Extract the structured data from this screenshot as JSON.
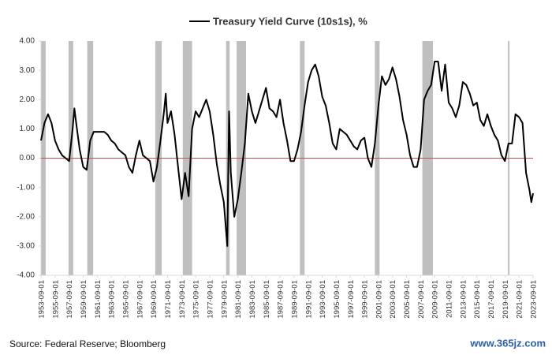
{
  "chart_data": {
    "type": "line",
    "series": [
      {
        "name": "Treasury Yield Curve (10s1s), %",
        "color": "#000000",
        "x": [
          "1953-09-01",
          "1954-03-01",
          "1954-09-01",
          "1955-03-01",
          "1955-09-01",
          "1956-03-01",
          "1956-09-01",
          "1957-03-01",
          "1957-09-01",
          "1958-03-01",
          "1958-06-01",
          "1958-09-01",
          "1959-03-01",
          "1959-09-01",
          "1960-03-01",
          "1960-09-01",
          "1961-03-01",
          "1961-09-01",
          "1962-03-01",
          "1962-09-01",
          "1963-03-01",
          "1963-09-01",
          "1964-03-01",
          "1964-09-01",
          "1965-03-01",
          "1965-09-01",
          "1966-03-01",
          "1966-09-01",
          "1967-03-01",
          "1967-09-01",
          "1968-03-01",
          "1968-09-01",
          "1969-03-01",
          "1969-09-01",
          "1970-03-01",
          "1970-09-01",
          "1971-03-01",
          "1971-06-01",
          "1971-09-01",
          "1972-03-01",
          "1972-09-01",
          "1973-03-01",
          "1973-09-01",
          "1974-03-01",
          "1974-09-01",
          "1975-03-01",
          "1975-09-01",
          "1976-03-01",
          "1976-09-01",
          "1977-03-01",
          "1977-09-01",
          "1978-03-01",
          "1978-09-01",
          "1979-03-01",
          "1979-09-01",
          "1980-03-01",
          "1980-06-01",
          "1980-09-01",
          "1981-03-01",
          "1981-09-01",
          "1982-03-01",
          "1982-09-01",
          "1983-03-01",
          "1983-09-01",
          "1984-03-01",
          "1984-09-01",
          "1985-03-01",
          "1985-09-01",
          "1986-03-01",
          "1986-09-01",
          "1987-03-01",
          "1987-09-01",
          "1988-03-01",
          "1988-09-01",
          "1989-03-01",
          "1989-09-01",
          "1990-03-01",
          "1990-09-01",
          "1991-03-01",
          "1991-09-01",
          "1992-03-01",
          "1992-09-01",
          "1993-03-01",
          "1993-09-01",
          "1994-03-01",
          "1994-09-01",
          "1995-03-01",
          "1995-09-01",
          "1996-03-01",
          "1996-09-01",
          "1997-03-01",
          "1997-09-01",
          "1998-03-01",
          "1998-09-01",
          "1999-03-01",
          "1999-09-01",
          "2000-03-01",
          "2000-09-01",
          "2001-03-01",
          "2001-09-01",
          "2002-03-01",
          "2002-09-01",
          "2003-03-01",
          "2003-09-01",
          "2004-03-01",
          "2004-09-01",
          "2005-03-01",
          "2005-09-01",
          "2006-03-01",
          "2006-09-01",
          "2007-03-01",
          "2007-09-01",
          "2008-03-01",
          "2008-09-01",
          "2009-03-01",
          "2009-09-01",
          "2010-03-01",
          "2010-09-01",
          "2011-03-01",
          "2011-09-01",
          "2012-03-01",
          "2012-09-01",
          "2013-03-01",
          "2013-09-01",
          "2014-03-01",
          "2014-09-01",
          "2015-03-01",
          "2015-09-01",
          "2016-03-01",
          "2016-09-01",
          "2017-03-01",
          "2017-09-01",
          "2018-03-01",
          "2018-09-01",
          "2019-03-01",
          "2019-09-01",
          "2020-03-01",
          "2020-09-01",
          "2021-03-01",
          "2021-09-01",
          "2022-03-01",
          "2022-09-01",
          "2023-03-01",
          "2023-06-01",
          "2023-09-01"
        ],
        "values": [
          0.6,
          1.2,
          1.5,
          1.2,
          0.6,
          0.3,
          0.1,
          0.0,
          -0.1,
          1.0,
          1.7,
          1.2,
          0.3,
          -0.3,
          -0.4,
          0.6,
          0.9,
          0.9,
          0.9,
          0.9,
          0.8,
          0.6,
          0.5,
          0.3,
          0.2,
          0.1,
          -0.3,
          -0.5,
          0.1,
          0.6,
          0.1,
          0.0,
          -0.1,
          -0.8,
          -0.3,
          0.6,
          1.6,
          2.2,
          1.2,
          1.6,
          0.8,
          -0.3,
          -1.4,
          -0.5,
          -1.3,
          1.0,
          1.6,
          1.4,
          1.7,
          2.0,
          1.6,
          0.8,
          -0.2,
          -0.9,
          -1.5,
          -3.0,
          1.6,
          -0.5,
          -2.0,
          -1.4,
          -0.5,
          0.5,
          2.2,
          1.6,
          1.2,
          1.6,
          2.0,
          2.4,
          1.7,
          1.6,
          1.4,
          2.0,
          1.2,
          0.6,
          -0.1,
          -0.1,
          0.3,
          0.9,
          1.8,
          2.6,
          3.0,
          3.2,
          2.8,
          2.1,
          1.8,
          1.2,
          0.5,
          0.3,
          1.0,
          0.9,
          0.8,
          0.6,
          0.4,
          0.3,
          0.6,
          0.7,
          0.0,
          -0.3,
          0.5,
          1.8,
          2.8,
          2.5,
          2.7,
          3.1,
          2.7,
          2.1,
          1.3,
          0.8,
          0.1,
          -0.3,
          -0.3,
          0.3,
          2.0,
          2.3,
          2.5,
          3.3,
          3.3,
          2.3,
          3.2,
          1.9,
          1.7,
          1.4,
          1.8,
          2.6,
          2.5,
          2.2,
          1.8,
          1.9,
          1.3,
          1.1,
          1.5,
          1.1,
          0.8,
          0.6,
          0.1,
          -0.1,
          0.5,
          0.5,
          1.5,
          1.4,
          1.2,
          -0.5,
          -1.1,
          -1.5,
          -1.2
        ]
      }
    ],
    "recessions": [
      [
        "1953-09-01",
        "1954-05-01"
      ],
      [
        "1957-08-01",
        "1958-04-01"
      ],
      [
        "1960-04-01",
        "1961-02-01"
      ],
      [
        "1969-12-01",
        "1970-11-01"
      ],
      [
        "1973-11-01",
        "1975-03-01"
      ],
      [
        "1980-01-01",
        "1980-07-01"
      ],
      [
        "1981-07-01",
        "1982-11-01"
      ],
      [
        "1990-07-01",
        "1991-03-01"
      ],
      [
        "2001-03-01",
        "2001-11-01"
      ],
      [
        "2007-12-01",
        "2009-06-01"
      ],
      [
        "2020-02-01",
        "2020-04-01"
      ]
    ],
    "recession_color": "#bfbfbf",
    "reference_line": {
      "value": 0,
      "color": "#c0504d"
    },
    "xlim": [
      "1953-09-01",
      "2023-09-01"
    ],
    "xticks": [
      "1953-09-01",
      "1955-09-01",
      "1957-09-01",
      "1959-09-01",
      "1961-09-01",
      "1963-09-01",
      "1965-09-01",
      "1967-09-01",
      "1969-09-01",
      "1971-09-01",
      "1973-09-01",
      "1975-09-01",
      "1977-09-01",
      "1979-09-01",
      "1981-09-01",
      "1983-09-01",
      "1985-09-01",
      "1987-09-01",
      "1989-09-01",
      "1991-09-01",
      "1993-09-01",
      "1995-09-01",
      "1997-09-01",
      "1999-09-01",
      "2001-09-01",
      "2003-09-01",
      "2005-09-01",
      "2007-09-01",
      "2009-09-01",
      "2011-09-01",
      "2013-09-01",
      "2015-09-01",
      "2017-09-01",
      "2019-09-01",
      "2021-09-01",
      "2023-09-01"
    ],
    "ylim": [
      -4,
      4
    ],
    "yticks": [
      {
        "value": -4,
        "label": "-4.00"
      },
      {
        "value": -3,
        "label": "-3.00"
      },
      {
        "value": -2,
        "label": "-2.00"
      },
      {
        "value": -1,
        "label": "-1.00"
      },
      {
        "value": 0,
        "label": "0.00"
      },
      {
        "value": 1,
        "label": "1.00"
      },
      {
        "value": 2,
        "label": "2.00"
      },
      {
        "value": 3,
        "label": "3.00"
      },
      {
        "value": 4,
        "label": "4.00"
      }
    ],
    "grid": false,
    "legend": "top",
    "source": "Source: Federal Reserve; Bloomberg",
    "watermark": "www.365jz.com"
  }
}
